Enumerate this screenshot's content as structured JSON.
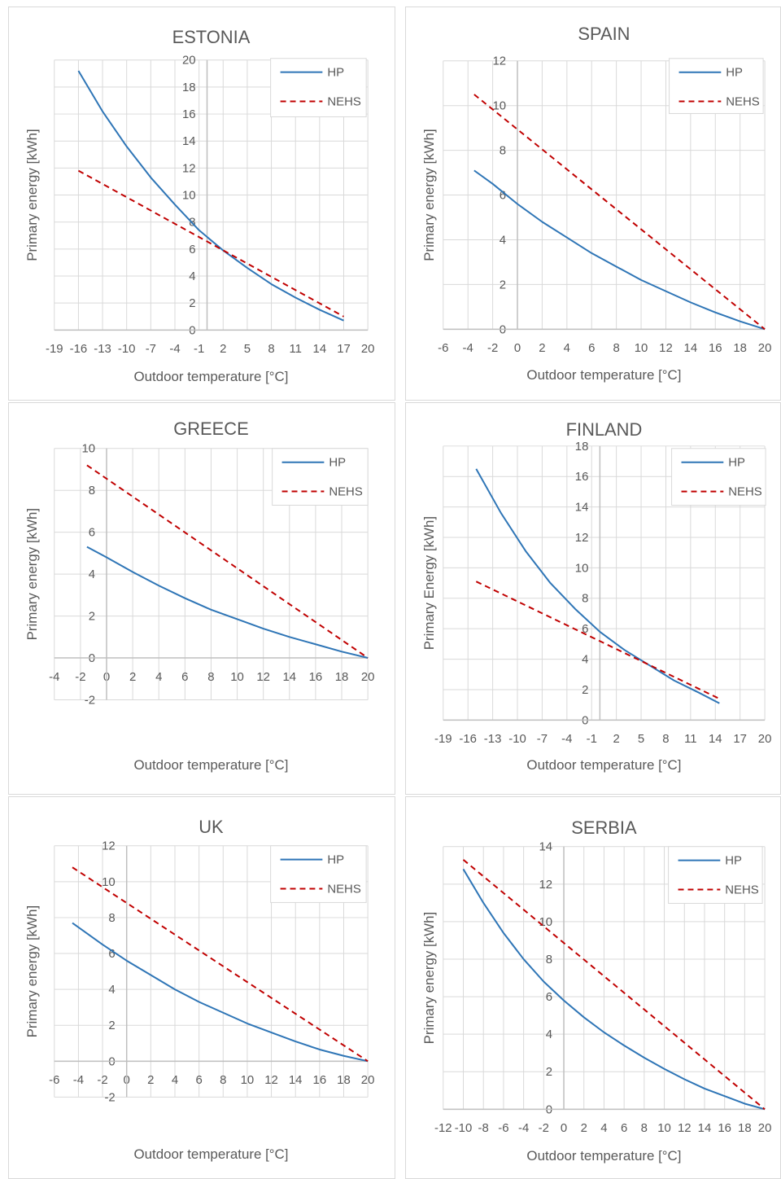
{
  "colors": {
    "hp": "#2e75b6",
    "nehs": "#c00000",
    "grid": "#d9d9d9",
    "text": "#595959"
  },
  "chart_data": [
    {
      "type": "line",
      "title": "ESTONIA",
      "xlabel": "Outdoor temperature [°C]",
      "ylabel": "Primary energy [kWh]",
      "xlim": [
        -19,
        20
      ],
      "ylim": [
        0,
        20
      ],
      "xticks": [
        -19,
        -16,
        -13,
        -10,
        -7,
        -4,
        -1,
        2,
        5,
        8,
        11,
        14,
        17,
        20
      ],
      "yticks": [
        0,
        2,
        4,
        6,
        8,
        10,
        12,
        14,
        16,
        18,
        20
      ],
      "legend": "top-right",
      "series": [
        {
          "name": "HP",
          "style": "solid",
          "x": [
            -16,
            -13,
            -10,
            -7,
            -4,
            -1,
            2,
            5,
            8,
            11,
            14,
            17
          ],
          "y": [
            19.2,
            16.2,
            13.6,
            11.3,
            9.3,
            7.4,
            5.9,
            4.6,
            3.4,
            2.4,
            1.5,
            0.7
          ]
        },
        {
          "name": "NEHS",
          "style": "dashed",
          "x": [
            -16,
            17
          ],
          "y": [
            11.8,
            1.0
          ]
        }
      ]
    },
    {
      "type": "line",
      "title": "SPAIN",
      "xlabel": "Outdoor temperature [°C]",
      "ylabel": "Primary energy [kWh]",
      "xlim": [
        -6,
        20
      ],
      "ylim": [
        0,
        12
      ],
      "xticks": [
        -6,
        -4,
        -2,
        0,
        2,
        4,
        6,
        8,
        10,
        12,
        14,
        16,
        18,
        20
      ],
      "yticks": [
        0,
        2,
        4,
        6,
        8,
        10,
        12
      ],
      "legend": "top-right",
      "series": [
        {
          "name": "HP",
          "style": "solid",
          "x": [
            -3.5,
            -2,
            0,
            2,
            4,
            6,
            8,
            10,
            12,
            14,
            16,
            18,
            20
          ],
          "y": [
            7.1,
            6.5,
            5.6,
            4.8,
            4.1,
            3.4,
            2.8,
            2.2,
            1.7,
            1.2,
            0.75,
            0.35,
            0
          ]
        },
        {
          "name": "NEHS",
          "style": "dashed",
          "x": [
            -3.5,
            20
          ],
          "y": [
            10.5,
            0
          ]
        }
      ]
    },
    {
      "type": "line",
      "title": "GREECE",
      "xlabel": "Outdoor temperature [°C]",
      "ylabel": "Primary energy [kWh]",
      "xlim": [
        -4,
        20
      ],
      "ylim": [
        -2,
        10
      ],
      "xticks": [
        -4,
        -2,
        0,
        2,
        4,
        6,
        8,
        10,
        12,
        14,
        16,
        18,
        20
      ],
      "yticks": [
        -2,
        0,
        2,
        4,
        6,
        8,
        10
      ],
      "legend": "top-right",
      "series": [
        {
          "name": "HP",
          "style": "solid",
          "x": [
            -1.5,
            0,
            2,
            4,
            6,
            8,
            10,
            12,
            14,
            16,
            18,
            20
          ],
          "y": [
            5.3,
            4.8,
            4.1,
            3.45,
            2.85,
            2.3,
            1.85,
            1.4,
            1.0,
            0.65,
            0.3,
            0
          ]
        },
        {
          "name": "NEHS",
          "style": "dashed",
          "x": [
            -1.5,
            20
          ],
          "y": [
            9.2,
            0
          ]
        }
      ]
    },
    {
      "type": "line",
      "title": "FINLAND",
      "xlabel": "Outdoor temperature [°C]",
      "ylabel": "Primary Energy [kWh]",
      "xlim": [
        -19,
        20
      ],
      "ylim": [
        0,
        18
      ],
      "xticks": [
        -19,
        -16,
        -13,
        -10,
        -7,
        -4,
        -1,
        2,
        5,
        8,
        11,
        14,
        17,
        20
      ],
      "yticks": [
        0,
        2,
        4,
        6,
        8,
        10,
        12,
        14,
        16,
        18
      ],
      "legend": "top-right",
      "series": [
        {
          "name": "HP",
          "style": "solid",
          "x": [
            -15,
            -12,
            -9,
            -6,
            -3,
            0,
            3,
            6,
            9,
            12,
            14.5
          ],
          "y": [
            16.5,
            13.6,
            11.1,
            9.0,
            7.3,
            5.8,
            4.6,
            3.6,
            2.6,
            1.8,
            1.1
          ]
        },
        {
          "name": "NEHS",
          "style": "dashed",
          "x": [
            -15,
            14.5
          ],
          "y": [
            9.1,
            1.4
          ]
        }
      ]
    },
    {
      "type": "line",
      "title": "UK",
      "xlabel": "Outdoor temperature [°C]",
      "ylabel": "Primary energy [kWh]",
      "xlim": [
        -6,
        20
      ],
      "ylim": [
        -2,
        12
      ],
      "xticks": [
        -6,
        -4,
        -2,
        0,
        2,
        4,
        6,
        8,
        10,
        12,
        14,
        16,
        18,
        20
      ],
      "yticks": [
        -2,
        0,
        2,
        4,
        6,
        8,
        10,
        12
      ],
      "legend": "top-right",
      "series": [
        {
          "name": "HP",
          "style": "solid",
          "x": [
            -4.5,
            -2,
            0,
            2,
            4,
            6,
            8,
            10,
            12,
            14,
            16,
            18,
            20
          ],
          "y": [
            7.7,
            6.5,
            5.6,
            4.8,
            4.0,
            3.3,
            2.7,
            2.1,
            1.6,
            1.1,
            0.65,
            0.3,
            0
          ]
        },
        {
          "name": "NEHS",
          "style": "dashed",
          "x": [
            -4.5,
            20
          ],
          "y": [
            10.8,
            0
          ]
        }
      ]
    },
    {
      "type": "line",
      "title": "SERBIA",
      "xlabel": "Outdoor temperature [°C]",
      "ylabel": "Primary energy [kWh]",
      "xlim": [
        -12,
        20
      ],
      "ylim": [
        0,
        14
      ],
      "xticks": [
        -12,
        -10,
        -8,
        -6,
        -4,
        -2,
        0,
        2,
        4,
        6,
        8,
        10,
        12,
        14,
        16,
        18,
        20
      ],
      "yticks": [
        0,
        2,
        4,
        6,
        8,
        10,
        12,
        14
      ],
      "legend": "top-right",
      "series": [
        {
          "name": "HP",
          "style": "solid",
          "x": [
            -10,
            -8,
            -6,
            -4,
            -2,
            0,
            2,
            4,
            6,
            8,
            10,
            12,
            14,
            16,
            18,
            20
          ],
          "y": [
            12.8,
            11.0,
            9.4,
            8.0,
            6.8,
            5.8,
            4.9,
            4.1,
            3.4,
            2.75,
            2.15,
            1.6,
            1.1,
            0.7,
            0.3,
            0
          ]
        },
        {
          "name": "NEHS",
          "style": "dashed",
          "x": [
            -10,
            20
          ],
          "y": [
            13.3,
            0
          ]
        }
      ]
    }
  ]
}
